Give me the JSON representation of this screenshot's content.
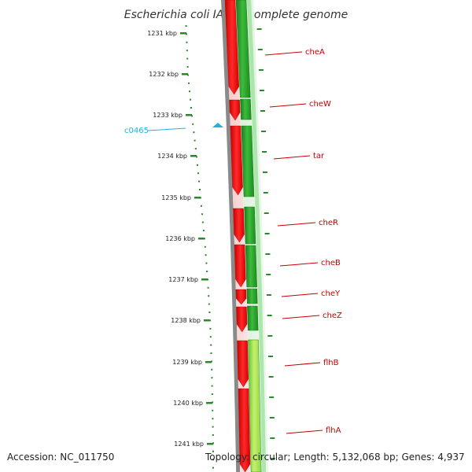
{
  "title": "Escherichia coli IAI39, complete genome",
  "footer": {
    "accession": "Accession: NC_011750",
    "summary": "Topology: circular; Length: 5,132,068 bp; Genes: 4,937"
  },
  "ruler": {
    "labels": [
      "1231 kbp",
      "1232 kbp",
      "1233 kbp",
      "1234 kbp",
      "1235 kbp",
      "1236 kbp",
      "1237 kbp",
      "1238 kbp",
      "1239 kbp",
      "1240 kbp",
      "1241 kbp"
    ]
  },
  "marker": {
    "label": "c0465"
  },
  "genes": [
    {
      "name": "cheA"
    },
    {
      "name": "cheW"
    },
    {
      "name": "tar"
    },
    {
      "name": "cheR"
    },
    {
      "name": "cheB"
    },
    {
      "name": "cheY"
    },
    {
      "name": "cheZ"
    },
    {
      "name": "flhB"
    },
    {
      "name": "flhA"
    }
  ],
  "colors": {
    "reverse_strand": "#e80000",
    "forward_strand": "#2e9e2e",
    "backbone": "#8a8a8a",
    "gene_label": "#c40000",
    "ruler": "#2a8a2a",
    "marker": "#23b0e0"
  }
}
